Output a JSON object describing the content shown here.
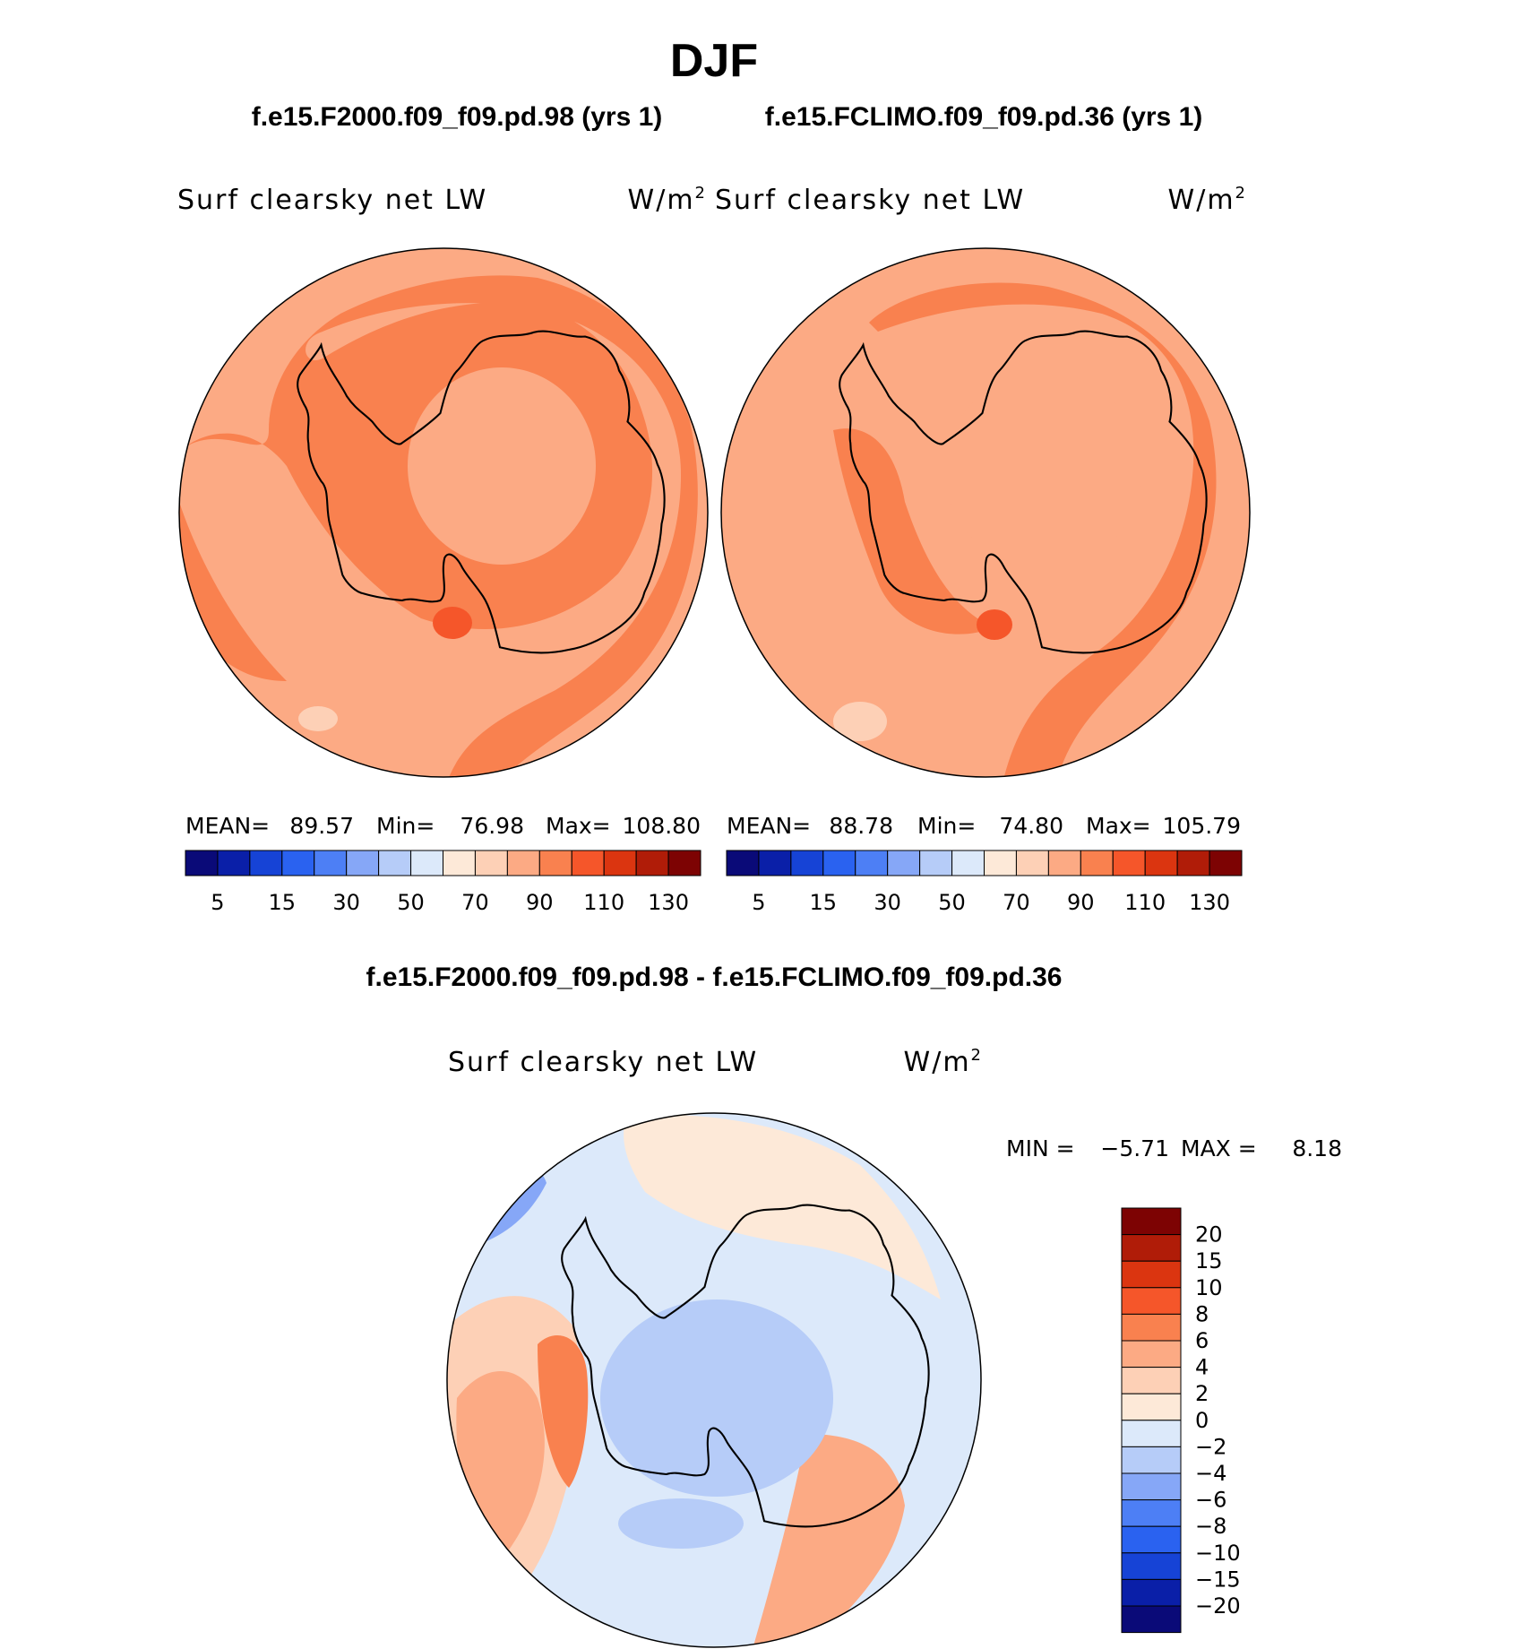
{
  "season": "DJF",
  "panels": [
    {
      "case": "f.e15.F2000.f09_f09.pd.98 (yrs 1)",
      "variable": "Surf clearsky net LW",
      "units": "W/m",
      "units_exp": "2",
      "stats": {
        "mean_label": "MEAN=",
        "mean": "89.57",
        "min_label": "Min=",
        "min": "76.98",
        "max_label": "Max=",
        "max": "108.80"
      }
    },
    {
      "case": "f.e15.FCLIMO.f09_f09.pd.36 (yrs 1)",
      "variable": "Surf clearsky net LW",
      "units": "W/m",
      "units_exp": "2",
      "stats": {
        "mean_label": "MEAN=",
        "mean": "88.78",
        "min_label": "Min=",
        "min": "74.80",
        "max_label": "Max=",
        "max": "105.79"
      }
    }
  ],
  "abs_colorbar": {
    "colors": [
      "#0a0a78",
      "#0a1fa8",
      "#1643d6",
      "#2a62f0",
      "#4d7ff5",
      "#86a7f7",
      "#b6ccf8",
      "#dce9fa",
      "#fde9d8",
      "#fdd0b6",
      "#fcaa84",
      "#f9814f",
      "#f5562a",
      "#db3510",
      "#b01c08",
      "#7d0303"
    ],
    "labels": [
      "5",
      "15",
      "30",
      "50",
      "70",
      "90",
      "110",
      "130"
    ]
  },
  "diff": {
    "title": "f.e15.F2000.f09_f09.pd.98 - f.e15.FCLIMO.f09_f09.pd.36",
    "variable": "Surf clearsky net LW",
    "units": "W/m",
    "units_exp": "2",
    "stats": {
      "min_label": "MIN =",
      "min": "−5.71",
      "max_label": "MAX =",
      "max": "8.18"
    }
  },
  "diff_colorbar": {
    "colors": [
      "#7d0303",
      "#b01c08",
      "#db3510",
      "#f5562a",
      "#f9814f",
      "#fcaa84",
      "#fdd0b6",
      "#fde9d8",
      "#dce9fa",
      "#b6ccf8",
      "#86a7f7",
      "#4d7ff5",
      "#2a62f0",
      "#1643d6",
      "#0a1fa8",
      "#0a0a78"
    ],
    "labels": [
      "20",
      "15",
      "10",
      "8",
      "6",
      "4",
      "2",
      "0",
      "−2",
      "−4",
      "−6",
      "−8",
      "−10",
      "−15",
      "−20"
    ]
  },
  "map_colors": {
    "abs_base": "#fcaa84",
    "abs_high": "#f9814f",
    "abs_peak": "#f5562a",
    "abs_low": "#fdd0b6",
    "diff_base": "#dce9fa",
    "diff_pos1": "#fde9d8",
    "diff_pos2": "#fdd0b6",
    "diff_pos3": "#fcaa84",
    "diff_pos4": "#f9814f",
    "diff_neg1": "#b6ccf8",
    "diff_neg2": "#86a7f7",
    "coast": "#000000"
  }
}
